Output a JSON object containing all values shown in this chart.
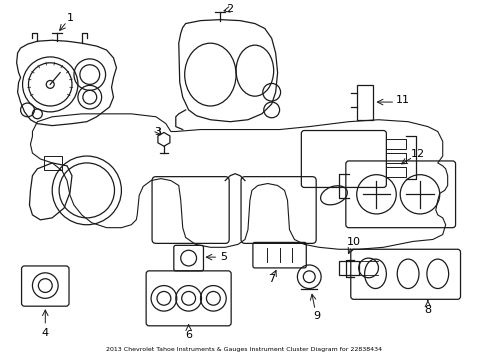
{
  "title": "2013 Chevrolet Tahoe Instruments & Gauges Instrument Cluster Diagram for 22838434",
  "bg_color": "#ffffff",
  "line_color": "#1a1a1a",
  "text_color": "#000000",
  "fig_width": 4.89,
  "fig_height": 3.6,
  "dpi": 100
}
